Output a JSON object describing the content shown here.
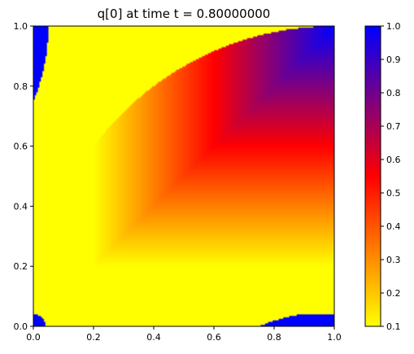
{
  "chart_data": {
    "type": "heatmap",
    "title": "q[0] at time t =     0.80000000",
    "xlabel": "",
    "ylabel": "",
    "xlim": [
      0.0,
      1.0
    ],
    "ylim": [
      0.0,
      1.0
    ],
    "x_ticks": [
      "0.0",
      "0.2",
      "0.4",
      "0.6",
      "0.8",
      "1.0"
    ],
    "y_ticks": [
      "0.0",
      "0.2",
      "0.4",
      "0.6",
      "0.8",
      "1.0"
    ],
    "grid": false,
    "colorbar": {
      "range": [
        0.1,
        1.0
      ],
      "ticks": [
        "0.1",
        "0.2",
        "0.3",
        "0.4",
        "0.5",
        "0.6",
        "0.7",
        "0.8",
        "0.9",
        "1.0"
      ],
      "colormap": [
        {
          "value": 0.1,
          "color": "#ffff00"
        },
        {
          "value": 0.55,
          "color": "#ff0000"
        },
        {
          "value": 1.0,
          "color": "#0000ff"
        }
      ]
    },
    "field": {
      "background_value": 0.1,
      "corner_value": 1.0,
      "ramp_region": {
        "x_start": 0.2,
        "y_start": 0.2,
        "value_min": 0.1,
        "value_max": 1.0
      },
      "circle_center": [
        1.0,
        0.0
      ],
      "circle_radius": 1.0,
      "corner_circle_radius": 0.04
    }
  }
}
